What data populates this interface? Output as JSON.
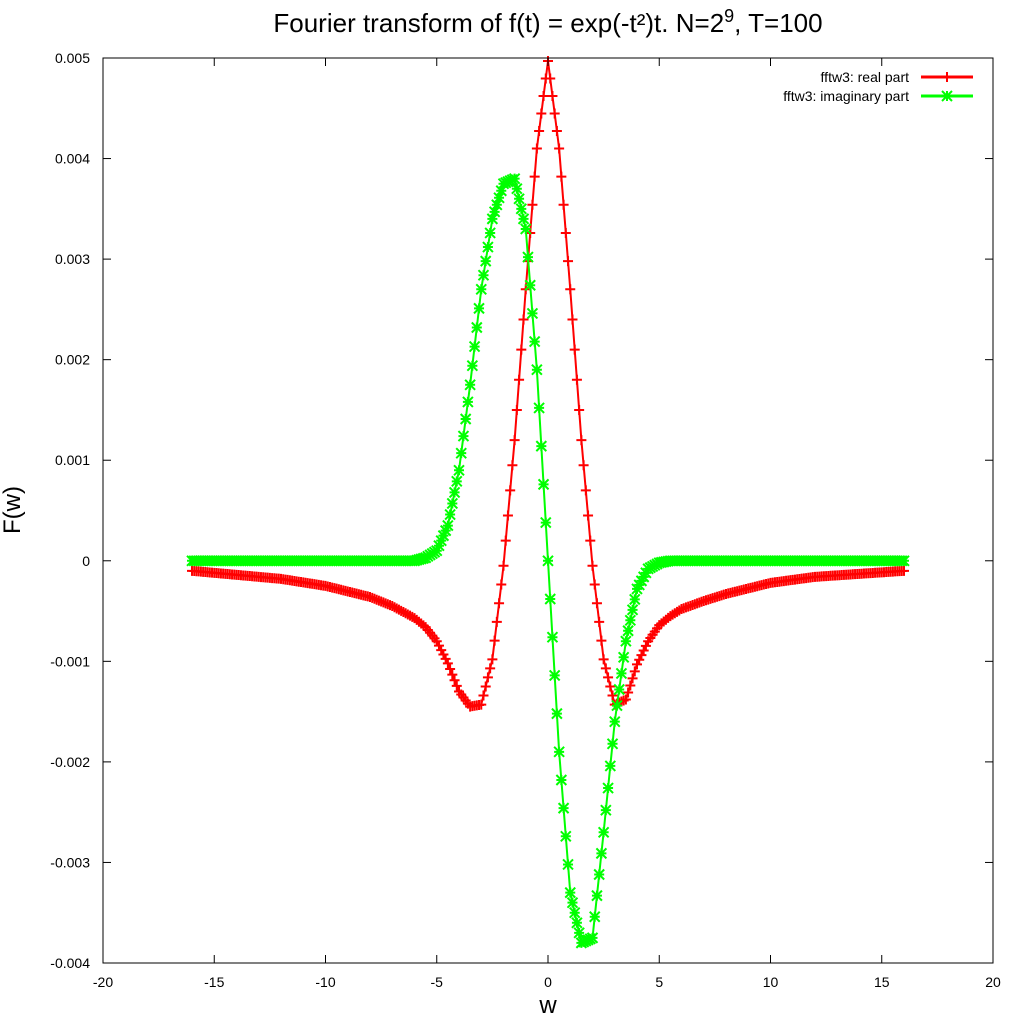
{
  "chart_data": {
    "type": "line",
    "title": "Fourier transform of f(t) = exp(-t²)t. N=2",
    "title_sup": "9",
    "title_suffix": ", T=100",
    "xlabel": "w",
    "ylabel": "F(w)",
    "xlim": [
      -20,
      20
    ],
    "ylim": [
      -0.004,
      0.005
    ],
    "grid": false,
    "legend_position": "top-right",
    "x_ticks": [
      {
        "value": -20,
        "label": "-20"
      },
      {
        "value": -15,
        "label": "-15"
      },
      {
        "value": -10,
        "label": "-10"
      },
      {
        "value": -5,
        "label": "-5"
      },
      {
        "value": 0,
        "label": "0"
      },
      {
        "value": 5,
        "label": "5"
      },
      {
        "value": 10,
        "label": "10"
      },
      {
        "value": 15,
        "label": "15"
      },
      {
        "value": 20,
        "label": "20"
      }
    ],
    "y_ticks": [
      {
        "value": -0.004,
        "label": "-0.004"
      },
      {
        "value": -0.003,
        "label": "-0.003"
      },
      {
        "value": -0.002,
        "label": "-0.002"
      },
      {
        "value": -0.001,
        "label": "-0.001"
      },
      {
        "value": 0,
        "label": "0"
      },
      {
        "value": 0.001,
        "label": "0.001"
      },
      {
        "value": 0.002,
        "label": "0.002"
      },
      {
        "value": 0.003,
        "label": "0.003"
      },
      {
        "value": 0.004,
        "label": "0.004"
      },
      {
        "value": 0.005,
        "label": "0.005"
      }
    ],
    "series": [
      {
        "name": "fftw3: real part",
        "color": "#ff0000",
        "marker": "plus",
        "x": [
          -16.0,
          -12.0,
          -10.0,
          -8.0,
          -7.0,
          -6.0,
          -5.5,
          -5.0,
          -4.5,
          -4.0,
          -3.5,
          -3.0,
          -2.5,
          -2.0,
          -1.5,
          -1.0,
          -0.5,
          0.0,
          0.5,
          1.0,
          1.5,
          2.0,
          2.5,
          3.0,
          3.5,
          4.0,
          4.5,
          5.0,
          5.5,
          6.0,
          7.0,
          8.0,
          10.0,
          12.0,
          16.0
        ],
        "y": [
          -0.0001,
          -0.00018,
          -0.00025,
          -0.00036,
          -0.00045,
          -0.00057,
          -0.00066,
          -0.0008,
          -0.00102,
          -0.0013,
          -0.00145,
          -0.00143,
          -0.00098,
          -5e-05,
          0.0012,
          0.0027,
          0.0041,
          0.00497,
          0.0041,
          0.0027,
          0.0012,
          -5e-05,
          -0.00098,
          -0.00143,
          -0.00138,
          -0.00103,
          -0.0008,
          -0.00064,
          -0.00055,
          -0.00048,
          -0.0004,
          -0.00033,
          -0.00022,
          -0.00016,
          -0.0001
        ]
      },
      {
        "name": "fftw3: imaginary part",
        "color": "#00ff00",
        "marker": "star",
        "x": [
          -16.0,
          -10.0,
          -7.0,
          -6.0,
          -5.5,
          -5.0,
          -4.5,
          -4.0,
          -3.5,
          -3.0,
          -2.5,
          -2.0,
          -1.5,
          -1.0,
          -0.5,
          0.0,
          0.5,
          1.0,
          1.5,
          2.0,
          2.5,
          3.0,
          3.5,
          4.0,
          4.5,
          5.0,
          5.5,
          6.0,
          7.0,
          10.0,
          16.0
        ],
        "y": [
          0.0,
          0.0,
          0.0,
          0.0,
          3e-05,
          0.0001,
          0.00035,
          0.0009,
          0.00175,
          0.0027,
          0.0034,
          0.00375,
          0.0038,
          0.0033,
          0.0019,
          0.0,
          -0.0019,
          -0.0033,
          -0.0038,
          -0.00375,
          -0.0027,
          -0.0016,
          -0.0008,
          -0.00028,
          -8e-05,
          -2e-05,
          0.0,
          0.0,
          0.0,
          0.0,
          0.0
        ]
      }
    ]
  }
}
